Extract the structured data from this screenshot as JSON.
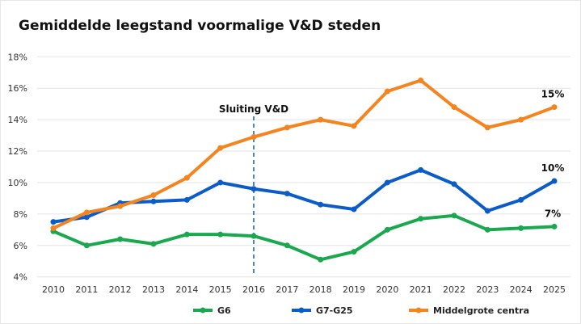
{
  "chart_data": {
    "type": "line",
    "title": "Gemiddelde leegstand voormalige V&D steden",
    "x": [
      2010,
      2011,
      2012,
      2013,
      2014,
      2015,
      2016,
      2017,
      2018,
      2019,
      2020,
      2021,
      2022,
      2023,
      2024,
      2025
    ],
    "ylim": [
      4,
      18
    ],
    "yticks": [
      "4%",
      "6%",
      "8%",
      "10%",
      "12%",
      "14%",
      "16%",
      "18%"
    ],
    "ytick_values": [
      4,
      6,
      8,
      10,
      12,
      14,
      16,
      18
    ],
    "grid": true,
    "legend_position": "bottom",
    "series": [
      {
        "name": "G6",
        "color": "#1aa84e",
        "values": [
          6.9,
          6.0,
          6.4,
          6.1,
          6.7,
          6.7,
          6.6,
          6.0,
          5.1,
          5.6,
          7.0,
          7.7,
          7.9,
          7.0,
          7.1,
          7.2
        ],
        "end_label": "7%"
      },
      {
        "name": "G7-G25",
        "color": "#0b5cc9",
        "values": [
          7.5,
          7.8,
          8.7,
          8.8,
          8.9,
          10.0,
          9.6,
          9.3,
          8.6,
          8.3,
          10.0,
          10.8,
          9.9,
          8.2,
          8.9,
          10.1
        ],
        "end_label": "10%"
      },
      {
        "name": "Middelgrote centra",
        "color": "#f5841f",
        "values": [
          7.1,
          8.1,
          8.5,
          9.2,
          10.3,
          12.2,
          12.9,
          13.5,
          14.0,
          13.6,
          15.8,
          16.5,
          14.8,
          13.5,
          14.0,
          14.8
        ],
        "end_label": "15%"
      }
    ],
    "annotations": [
      {
        "type": "vline",
        "x": 2016,
        "label": "Sluiting V&D",
        "color": "#0b5cc9",
        "style": "dashed"
      }
    ]
  }
}
